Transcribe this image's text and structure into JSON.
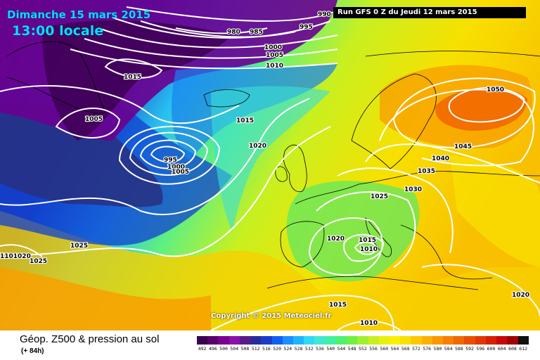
{
  "header": {
    "date": "Dimanche 15 mars 2015",
    "time": "13:00 locale",
    "run": "Run GFS 0 Z du Jeudi 12 mars 2015"
  },
  "copyright": "Copyright © 2015 Meteociel.fr",
  "footer": {
    "title": "Géop. Z500 & pression au sol",
    "subtitle": "(+ 84h)"
  },
  "legend": {
    "values": [
      "492",
      "496",
      "500",
      "504",
      "508",
      "512",
      "516",
      "520",
      "524",
      "528",
      "532",
      "536",
      "540",
      "544",
      "548",
      "552",
      "556",
      "560",
      "564",
      "568",
      "572",
      "576",
      "580",
      "584",
      "588",
      "592",
      "596",
      "600",
      "604",
      "608",
      "612"
    ],
    "colors": [
      "#3c0050",
      "#5a006e",
      "#7a0090",
      "#8a10a8",
      "#5a1a8a",
      "#2a2a9a",
      "#1a3cc8",
      "#1060f0",
      "#1890ff",
      "#20b4ff",
      "#30d8f8",
      "#40e8d0",
      "#40f0a0",
      "#50f070",
      "#70f040",
      "#a0f030",
      "#c8f020",
      "#e8f010",
      "#f8f000",
      "#fae000",
      "#fcc800",
      "#fcb000",
      "#fa9800",
      "#f88000",
      "#f06800",
      "#e85000",
      "#e03800",
      "#d82000",
      "#c80808",
      "#a00000",
      "#101010"
    ]
  },
  "isobars": [
    "990",
    "980",
    "985",
    "995",
    "1000",
    "1005",
    "1010",
    "1015",
    "1005",
    "1015",
    "1020",
    "995",
    "1000",
    "1005",
    "1025",
    "1030",
    "1025",
    "1020",
    "1015",
    "1010",
    "1050",
    "1045",
    "1040",
    "1035",
    "1025",
    "1101020",
    "1015",
    "1010",
    "1020"
  ]
}
